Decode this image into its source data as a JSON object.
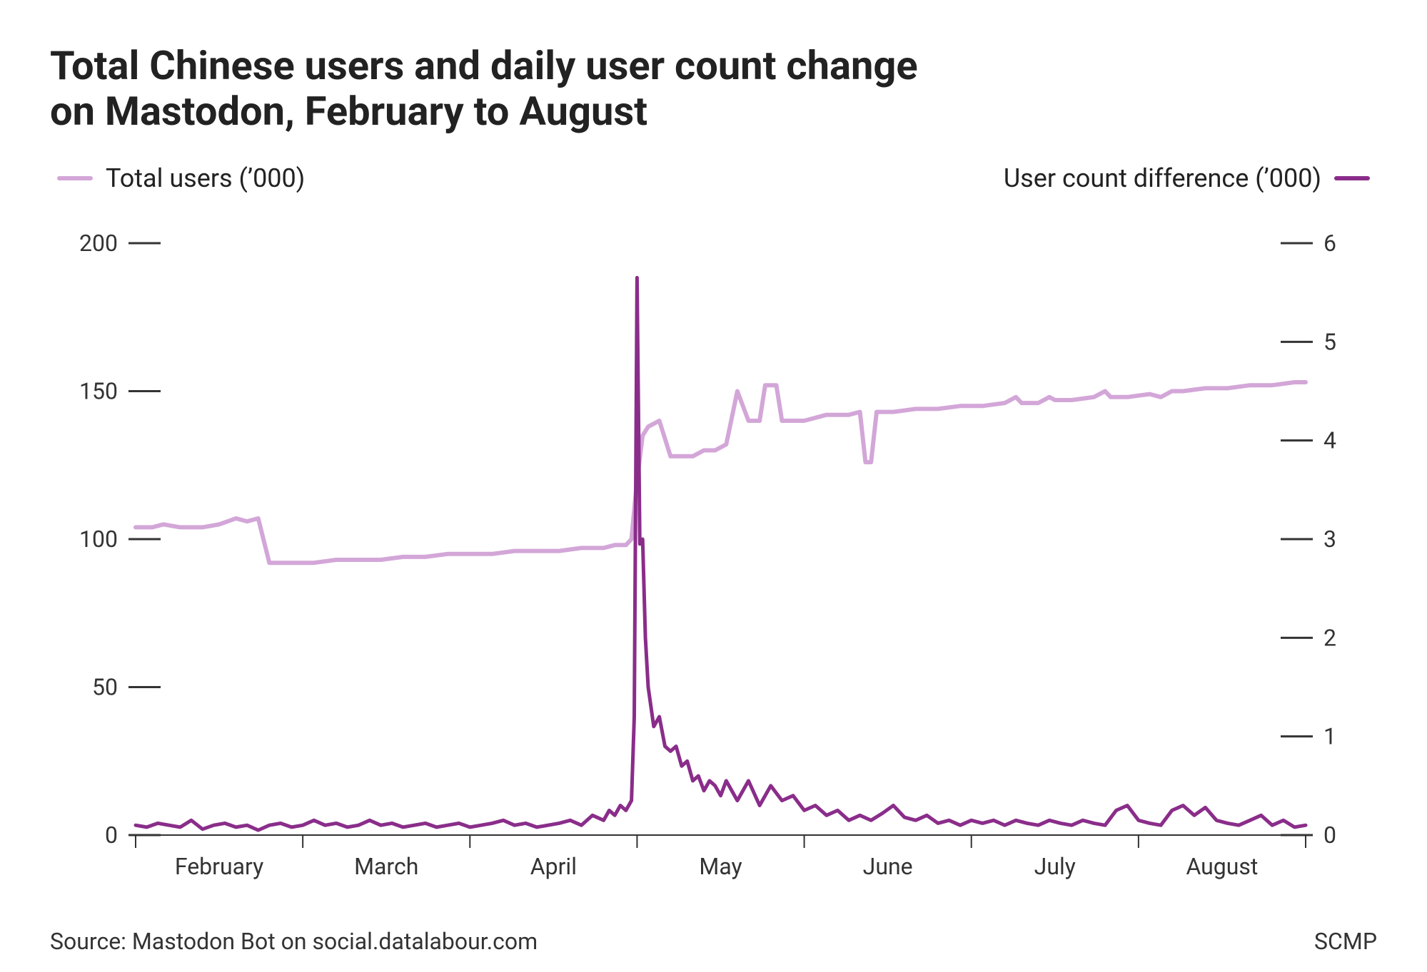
{
  "title_line1": "Total Chinese users and daily user count change",
  "title_line2": "on Mastodon, February to August",
  "legend_left": "Total users (’000)",
  "legend_right": "User count difference (’000)",
  "source": "Source: Mastodon Bot on social.datalabour.com",
  "credit": "SCMP",
  "chart": {
    "type": "line-dual-axis",
    "background_color": "#ffffff",
    "text_color": "#333333",
    "title_fontsize": 56,
    "title_weight": 700,
    "label_fontsize": 36,
    "tick_fontsize": 32,
    "left_axis": {
      "label": "Total users (’000)",
      "color": "#d3a6d8",
      "line_width": 6,
      "ylim": [
        0,
        200
      ],
      "yticks": [
        0,
        50,
        100,
        150,
        200
      ]
    },
    "right_axis": {
      "label": "User count difference (’000)",
      "color": "#8a2d8a",
      "line_width": 5,
      "ylim": [
        0,
        6
      ],
      "yticks": [
        0,
        1,
        2,
        3,
        4,
        5,
        6
      ]
    },
    "x_axis": {
      "domain": [
        0,
        210
      ],
      "month_ticks": [
        {
          "pos": 15,
          "label": "February"
        },
        {
          "pos": 45,
          "label": "March"
        },
        {
          "pos": 75,
          "label": "April"
        },
        {
          "pos": 105,
          "label": "May"
        },
        {
          "pos": 135,
          "label": "June"
        },
        {
          "pos": 165,
          "label": "July"
        },
        {
          "pos": 195,
          "label": "August"
        }
      ],
      "month_boundaries": [
        0,
        30,
        60,
        90,
        120,
        150,
        180,
        210
      ]
    },
    "total_users_series": [
      [
        0,
        104
      ],
      [
        3,
        104
      ],
      [
        5,
        105
      ],
      [
        8,
        104
      ],
      [
        12,
        104
      ],
      [
        15,
        105
      ],
      [
        18,
        107
      ],
      [
        20,
        106
      ],
      [
        22,
        107
      ],
      [
        24,
        92
      ],
      [
        28,
        92
      ],
      [
        32,
        92
      ],
      [
        36,
        93
      ],
      [
        40,
        93
      ],
      [
        44,
        93
      ],
      [
        48,
        94
      ],
      [
        52,
        94
      ],
      [
        56,
        95
      ],
      [
        60,
        95
      ],
      [
        64,
        95
      ],
      [
        68,
        96
      ],
      [
        72,
        96
      ],
      [
        76,
        96
      ],
      [
        80,
        97
      ],
      [
        84,
        97
      ],
      [
        86,
        98
      ],
      [
        88,
        98
      ],
      [
        89,
        100
      ],
      [
        90,
        120
      ],
      [
        91,
        135
      ],
      [
        92,
        138
      ],
      [
        93,
        139
      ],
      [
        94,
        140
      ],
      [
        96,
        128
      ],
      [
        98,
        128
      ],
      [
        100,
        128
      ],
      [
        102,
        130
      ],
      [
        104,
        130
      ],
      [
        106,
        132
      ],
      [
        108,
        150
      ],
      [
        110,
        140
      ],
      [
        112,
        140
      ],
      [
        113,
        152
      ],
      [
        115,
        152
      ],
      [
        116,
        140
      ],
      [
        118,
        140
      ],
      [
        120,
        140
      ],
      [
        124,
        142
      ],
      [
        128,
        142
      ],
      [
        130,
        143
      ],
      [
        131,
        126
      ],
      [
        132,
        126
      ],
      [
        133,
        143
      ],
      [
        136,
        143
      ],
      [
        140,
        144
      ],
      [
        144,
        144
      ],
      [
        148,
        145
      ],
      [
        152,
        145
      ],
      [
        156,
        146
      ],
      [
        158,
        148
      ],
      [
        159,
        146
      ],
      [
        162,
        146
      ],
      [
        164,
        148
      ],
      [
        165,
        147
      ],
      [
        168,
        147
      ],
      [
        172,
        148
      ],
      [
        174,
        150
      ],
      [
        175,
        148
      ],
      [
        178,
        148
      ],
      [
        182,
        149
      ],
      [
        184,
        148
      ],
      [
        186,
        150
      ],
      [
        188,
        150
      ],
      [
        192,
        151
      ],
      [
        196,
        151
      ],
      [
        200,
        152
      ],
      [
        204,
        152
      ],
      [
        208,
        153
      ],
      [
        210,
        153
      ]
    ],
    "user_diff_series": [
      [
        0,
        0.1
      ],
      [
        2,
        0.08
      ],
      [
        4,
        0.12
      ],
      [
        6,
        0.1
      ],
      [
        8,
        0.08
      ],
      [
        10,
        0.15
      ],
      [
        12,
        0.06
      ],
      [
        14,
        0.1
      ],
      [
        16,
        0.12
      ],
      [
        18,
        0.08
      ],
      [
        20,
        0.1
      ],
      [
        22,
        0.05
      ],
      [
        24,
        0.1
      ],
      [
        26,
        0.12
      ],
      [
        28,
        0.08
      ],
      [
        30,
        0.1
      ],
      [
        32,
        0.15
      ],
      [
        34,
        0.1
      ],
      [
        36,
        0.12
      ],
      [
        38,
        0.08
      ],
      [
        40,
        0.1
      ],
      [
        42,
        0.15
      ],
      [
        44,
        0.1
      ],
      [
        46,
        0.12
      ],
      [
        48,
        0.08
      ],
      [
        50,
        0.1
      ],
      [
        52,
        0.12
      ],
      [
        54,
        0.08
      ],
      [
        56,
        0.1
      ],
      [
        58,
        0.12
      ],
      [
        60,
        0.08
      ],
      [
        62,
        0.1
      ],
      [
        64,
        0.12
      ],
      [
        66,
        0.15
      ],
      [
        68,
        0.1
      ],
      [
        70,
        0.12
      ],
      [
        72,
        0.08
      ],
      [
        74,
        0.1
      ],
      [
        76,
        0.12
      ],
      [
        78,
        0.15
      ],
      [
        80,
        0.1
      ],
      [
        82,
        0.2
      ],
      [
        84,
        0.15
      ],
      [
        85,
        0.25
      ],
      [
        86,
        0.2
      ],
      [
        87,
        0.3
      ],
      [
        88,
        0.25
      ],
      [
        89,
        0.35
      ],
      [
        89.5,
        1.2
      ],
      [
        90,
        5.65
      ],
      [
        90.5,
        2.95
      ],
      [
        91,
        3.0
      ],
      [
        91.5,
        2.0
      ],
      [
        92,
        1.5
      ],
      [
        93,
        1.1
      ],
      [
        94,
        1.2
      ],
      [
        95,
        0.9
      ],
      [
        96,
        0.85
      ],
      [
        97,
        0.9
      ],
      [
        98,
        0.7
      ],
      [
        99,
        0.75
      ],
      [
        100,
        0.55
      ],
      [
        101,
        0.6
      ],
      [
        102,
        0.45
      ],
      [
        103,
        0.55
      ],
      [
        104,
        0.5
      ],
      [
        105,
        0.4
      ],
      [
        106,
        0.55
      ],
      [
        108,
        0.35
      ],
      [
        110,
        0.55
      ],
      [
        112,
        0.3
      ],
      [
        114,
        0.5
      ],
      [
        116,
        0.35
      ],
      [
        118,
        0.4
      ],
      [
        120,
        0.25
      ],
      [
        122,
        0.3
      ],
      [
        124,
        0.2
      ],
      [
        126,
        0.25
      ],
      [
        128,
        0.15
      ],
      [
        130,
        0.2
      ],
      [
        132,
        0.15
      ],
      [
        134,
        0.22
      ],
      [
        136,
        0.3
      ],
      [
        138,
        0.18
      ],
      [
        140,
        0.15
      ],
      [
        142,
        0.2
      ],
      [
        144,
        0.12
      ],
      [
        146,
        0.15
      ],
      [
        148,
        0.1
      ],
      [
        150,
        0.15
      ],
      [
        152,
        0.12
      ],
      [
        154,
        0.15
      ],
      [
        156,
        0.1
      ],
      [
        158,
        0.15
      ],
      [
        160,
        0.12
      ],
      [
        162,
        0.1
      ],
      [
        164,
        0.15
      ],
      [
        166,
        0.12
      ],
      [
        168,
        0.1
      ],
      [
        170,
        0.15
      ],
      [
        172,
        0.12
      ],
      [
        174,
        0.1
      ],
      [
        176,
        0.25
      ],
      [
        178,
        0.3
      ],
      [
        180,
        0.15
      ],
      [
        182,
        0.12
      ],
      [
        184,
        0.1
      ],
      [
        186,
        0.25
      ],
      [
        188,
        0.3
      ],
      [
        190,
        0.2
      ],
      [
        192,
        0.28
      ],
      [
        194,
        0.15
      ],
      [
        196,
        0.12
      ],
      [
        198,
        0.1
      ],
      [
        200,
        0.15
      ],
      [
        202,
        0.2
      ],
      [
        204,
        0.1
      ],
      [
        206,
        0.15
      ],
      [
        208,
        0.08
      ],
      [
        210,
        0.1
      ]
    ]
  }
}
